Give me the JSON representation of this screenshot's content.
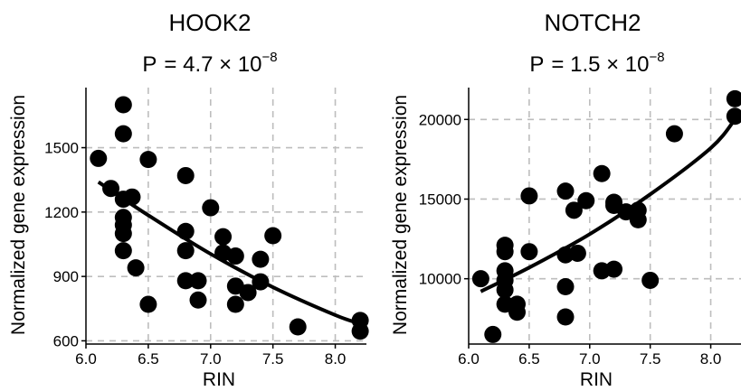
{
  "chart_data": [
    {
      "type": "scatter",
      "title": "HOOK2",
      "pvalue": {
        "prefix": "P",
        "mantissa": "= 4.7 × 10",
        "exponent": "−8"
      },
      "xlabel": "RIN",
      "ylabel": "Normalized gene expression",
      "xlim": [
        6.0,
        8.25
      ],
      "ylim": [
        585,
        1780
      ],
      "xticks": [
        6.0,
        6.5,
        7.0,
        7.5,
        8.0
      ],
      "xtick_labels": [
        "6.0",
        "6.5",
        "7.0",
        "7.5",
        "8.0"
      ],
      "yticks": [
        600,
        900,
        1200,
        1500
      ],
      "ytick_labels": [
        "600",
        "900",
        "1200",
        "1500"
      ],
      "grid": true,
      "points": [
        {
          "x": 6.1,
          "y": 1450
        },
        {
          "x": 6.2,
          "y": 1310
        },
        {
          "x": 6.3,
          "y": 1700
        },
        {
          "x": 6.3,
          "y": 1565
        },
        {
          "x": 6.3,
          "y": 1260
        },
        {
          "x": 6.3,
          "y": 1175
        },
        {
          "x": 6.3,
          "y": 1140
        },
        {
          "x": 6.3,
          "y": 1100
        },
        {
          "x": 6.3,
          "y": 1020
        },
        {
          "x": 6.37,
          "y": 1270
        },
        {
          "x": 6.4,
          "y": 940
        },
        {
          "x": 6.5,
          "y": 1445
        },
        {
          "x": 6.5,
          "y": 770
        },
        {
          "x": 6.8,
          "y": 1370
        },
        {
          "x": 6.8,
          "y": 1110
        },
        {
          "x": 6.8,
          "y": 1020
        },
        {
          "x": 6.8,
          "y": 880
        },
        {
          "x": 6.9,
          "y": 880
        },
        {
          "x": 6.9,
          "y": 790
        },
        {
          "x": 7.0,
          "y": 1220
        },
        {
          "x": 7.1,
          "y": 1085
        },
        {
          "x": 7.1,
          "y": 1010
        },
        {
          "x": 7.2,
          "y": 995
        },
        {
          "x": 7.2,
          "y": 855
        },
        {
          "x": 7.2,
          "y": 770
        },
        {
          "x": 7.3,
          "y": 825
        },
        {
          "x": 7.4,
          "y": 980
        },
        {
          "x": 7.4,
          "y": 875
        },
        {
          "x": 7.5,
          "y": 1090
        },
        {
          "x": 7.7,
          "y": 665
        },
        {
          "x": 8.2,
          "y": 695
        },
        {
          "x": 8.2,
          "y": 645
        }
      ],
      "fit": {
        "x": [
          6.1,
          6.5,
          7.0,
          7.5,
          8.0,
          8.2
        ],
        "y": [
          1340,
          1185,
          1005,
          850,
          720,
          680
        ]
      }
    },
    {
      "type": "scatter",
      "title": "NOTCH2",
      "pvalue": {
        "prefix": "P",
        "mantissa": "= 1.5 × 10",
        "exponent": "−8"
      },
      "xlabel": "RIN",
      "ylabel": "Normalized gene expression",
      "xlim": [
        6.0,
        8.25
      ],
      "ylim": [
        5900,
        22000
      ],
      "xticks": [
        6.0,
        6.5,
        7.0,
        7.5,
        8.0
      ],
      "xtick_labels": [
        "6.0",
        "6.5",
        "7.0",
        "7.5",
        "8.0"
      ],
      "yticks": [
        10000,
        15000,
        20000
      ],
      "ytick_labels": [
        "10000",
        "15000",
        "20000"
      ],
      "grid": true,
      "points": [
        {
          "x": 6.1,
          "y": 10000
        },
        {
          "x": 6.2,
          "y": 6500
        },
        {
          "x": 6.3,
          "y": 12100
        },
        {
          "x": 6.3,
          "y": 11700
        },
        {
          "x": 6.3,
          "y": 10500
        },
        {
          "x": 6.3,
          "y": 9900
        },
        {
          "x": 6.3,
          "y": 9300
        },
        {
          "x": 6.3,
          "y": 8400
        },
        {
          "x": 6.4,
          "y": 8400
        },
        {
          "x": 6.4,
          "y": 7900
        },
        {
          "x": 6.5,
          "y": 15200
        },
        {
          "x": 6.5,
          "y": 11700
        },
        {
          "x": 6.8,
          "y": 15500
        },
        {
          "x": 6.8,
          "y": 11500
        },
        {
          "x": 6.8,
          "y": 9500
        },
        {
          "x": 6.8,
          "y": 7600
        },
        {
          "x": 6.87,
          "y": 14300
        },
        {
          "x": 6.9,
          "y": 11600
        },
        {
          "x": 6.97,
          "y": 14900
        },
        {
          "x": 7.1,
          "y": 16600
        },
        {
          "x": 7.1,
          "y": 10500
        },
        {
          "x": 7.2,
          "y": 14800
        },
        {
          "x": 7.2,
          "y": 14600
        },
        {
          "x": 7.2,
          "y": 10600
        },
        {
          "x": 7.3,
          "y": 14200
        },
        {
          "x": 7.4,
          "y": 14300
        },
        {
          "x": 7.4,
          "y": 13700
        },
        {
          "x": 7.5,
          "y": 9900
        },
        {
          "x": 7.7,
          "y": 19100
        },
        {
          "x": 8.2,
          "y": 21300
        },
        {
          "x": 8.2,
          "y": 20200
        }
      ],
      "fit": {
        "x": [
          6.1,
          6.5,
          7.0,
          7.5,
          8.0,
          8.2
        ],
        "y": [
          9200,
          10700,
          12800,
          15300,
          18200,
          20000
        ]
      }
    }
  ]
}
